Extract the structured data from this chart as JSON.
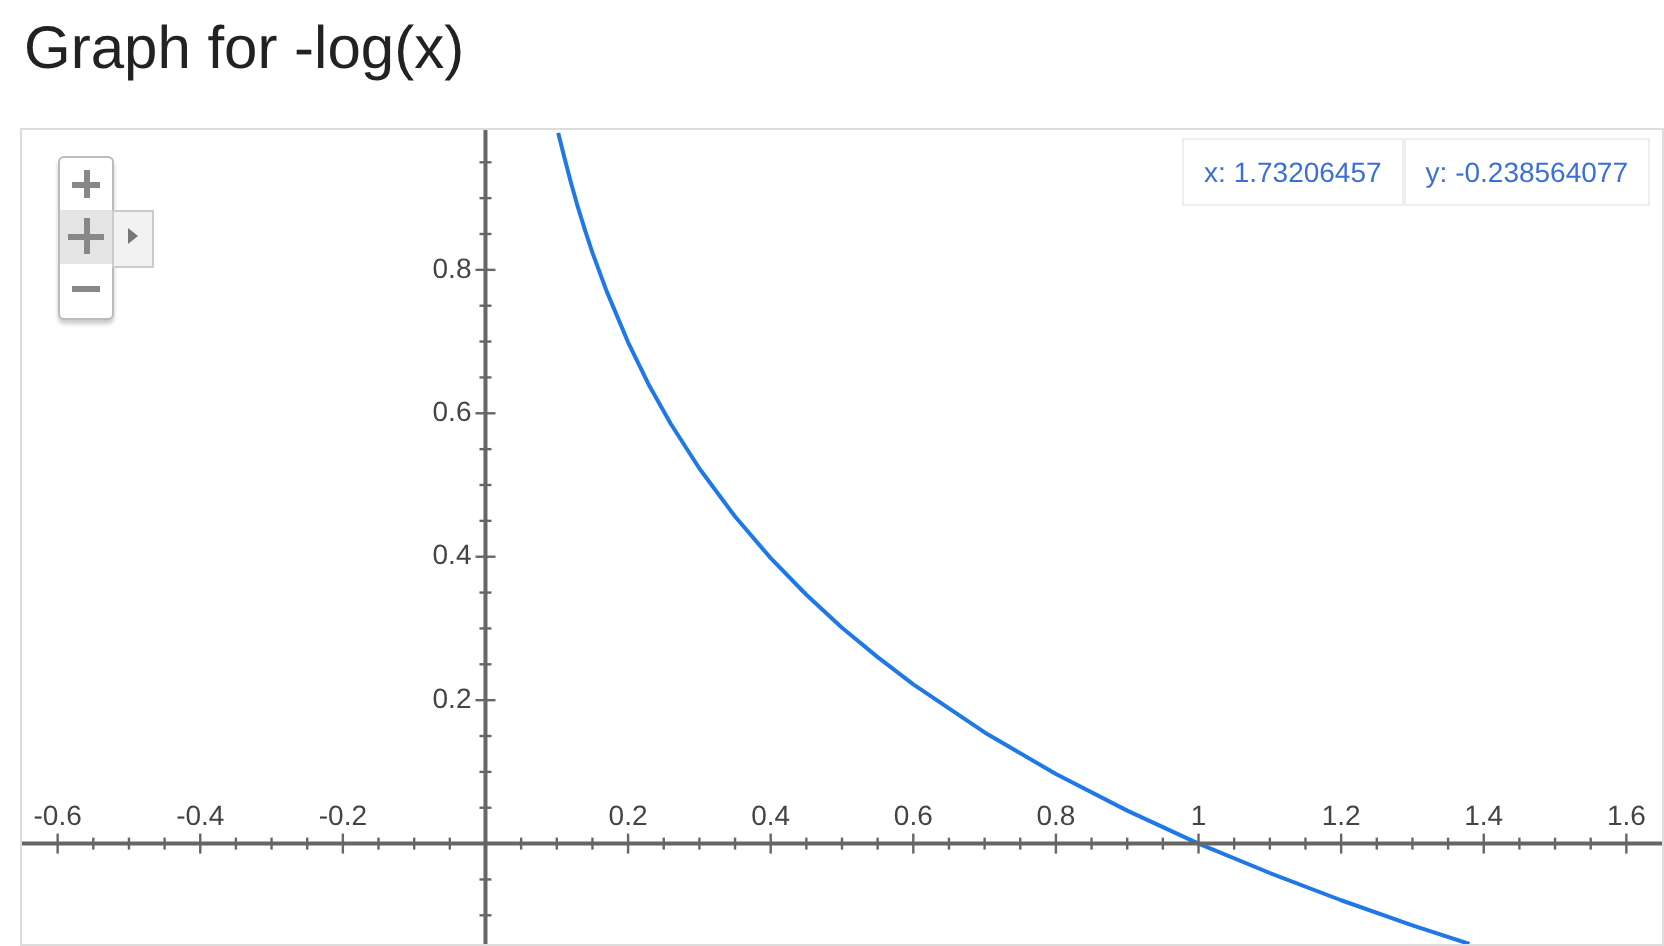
{
  "chart_data": {
    "type": "line",
    "title": "Graph for -log(x)",
    "annotations": [
      "x: 1.73206457",
      "y: -0.238564077"
    ],
    "series": [
      {
        "color": "#1f78e6",
        "x": [
          0.102,
          0.11,
          0.12,
          0.13,
          0.14,
          0.15,
          0.17,
          0.2,
          0.23,
          0.26,
          0.3,
          0.35,
          0.4,
          0.45,
          0.5,
          0.55,
          0.6,
          0.7,
          0.8,
          0.9,
          1.0,
          1.1,
          1.2,
          1.3,
          1.38
        ],
        "values": [
          0.991,
          0.959,
          0.921,
          0.886,
          0.854,
          0.824,
          0.77,
          0.699,
          0.638,
          0.585,
          0.523,
          0.456,
          0.398,
          0.347,
          0.301,
          0.26,
          0.222,
          0.155,
          0.097,
          0.046,
          0,
          -0.041,
          -0.079,
          -0.114,
          -0.14
        ]
      }
    ],
    "xlim": [
      -0.65,
      1.65
    ],
    "ylim": [
      -0.14,
      0.995
    ],
    "xticks": [
      -0.6,
      {
        "value": -0.55,
        "label": null
      },
      {
        "value": -0.5,
        "label": null
      },
      {
        "value": -0.45,
        "label": null
      },
      -0.4,
      {
        "value": -0.35,
        "label": null
      },
      {
        "value": -0.3,
        "label": null
      },
      {
        "value": -0.25,
        "label": null
      },
      -0.2,
      {
        "value": -0.15,
        "label": null
      },
      {
        "value": -0.1,
        "label": null
      },
      {
        "value": -0.05,
        "label": null
      },
      {
        "value": 0,
        "label": null
      },
      {
        "value": 0.05,
        "label": null
      },
      {
        "value": 0.1,
        "label": null
      },
      {
        "value": 0.15,
        "label": null
      },
      0.2,
      {
        "value": 0.25,
        "label": null
      },
      {
        "value": 0.3,
        "label": null
      },
      {
        "value": 0.35,
        "label": null
      },
      0.4,
      {
        "value": 0.45,
        "label": null
      },
      {
        "value": 0.5,
        "label": null
      },
      {
        "value": 0.55,
        "label": null
      },
      0.6,
      {
        "value": 0.65,
        "label": null
      },
      {
        "value": 0.7,
        "label": null
      },
      {
        "value": 0.75,
        "label": null
      },
      0.8,
      {
        "value": 0.85,
        "label": null
      },
      {
        "value": 0.9,
        "label": null
      },
      {
        "value": 0.95,
        "label": null
      },
      1,
      {
        "value": 1.05,
        "label": null
      },
      {
        "value": 1.1,
        "label": null
      },
      {
        "value": 1.15,
        "label": null
      },
      1.2,
      {
        "value": 1.25,
        "label": null
      },
      {
        "value": 1.3,
        "label": null
      },
      {
        "value": 1.35,
        "label": null
      },
      1.4,
      {
        "value": 1.45,
        "label": null
      },
      {
        "value": 1.5,
        "label": null
      },
      {
        "value": 1.55,
        "label": null
      },
      1.6
    ],
    "yticks": [
      {
        "value": -0.1,
        "label": null
      },
      {
        "value": -0.05,
        "label": null
      },
      {
        "value": 0,
        "label": null
      },
      {
        "value": 0.05,
        "label": null
      },
      {
        "value": 0.1,
        "label": null
      },
      {
        "value": 0.15,
        "label": null
      },
      0.2,
      {
        "value": 0.25,
        "label": null
      },
      {
        "value": 0.3,
        "label": null
      },
      {
        "value": 0.35,
        "label": null
      },
      0.4,
      {
        "value": 0.45,
        "label": null
      },
      {
        "value": 0.5,
        "label": null
      },
      {
        "value": 0.55,
        "label": null
      },
      0.6,
      {
        "value": 0.65,
        "label": null
      },
      {
        "value": 0.7,
        "label": null
      },
      {
        "value": 0.75,
        "label": null
      },
      0.8,
      {
        "value": 0.85,
        "label": null
      },
      {
        "value": 0.9,
        "label": null
      },
      {
        "value": 0.95,
        "label": null
      }
    ],
    "legend": false,
    "marker": "none",
    "line_style": "solid"
  }
}
